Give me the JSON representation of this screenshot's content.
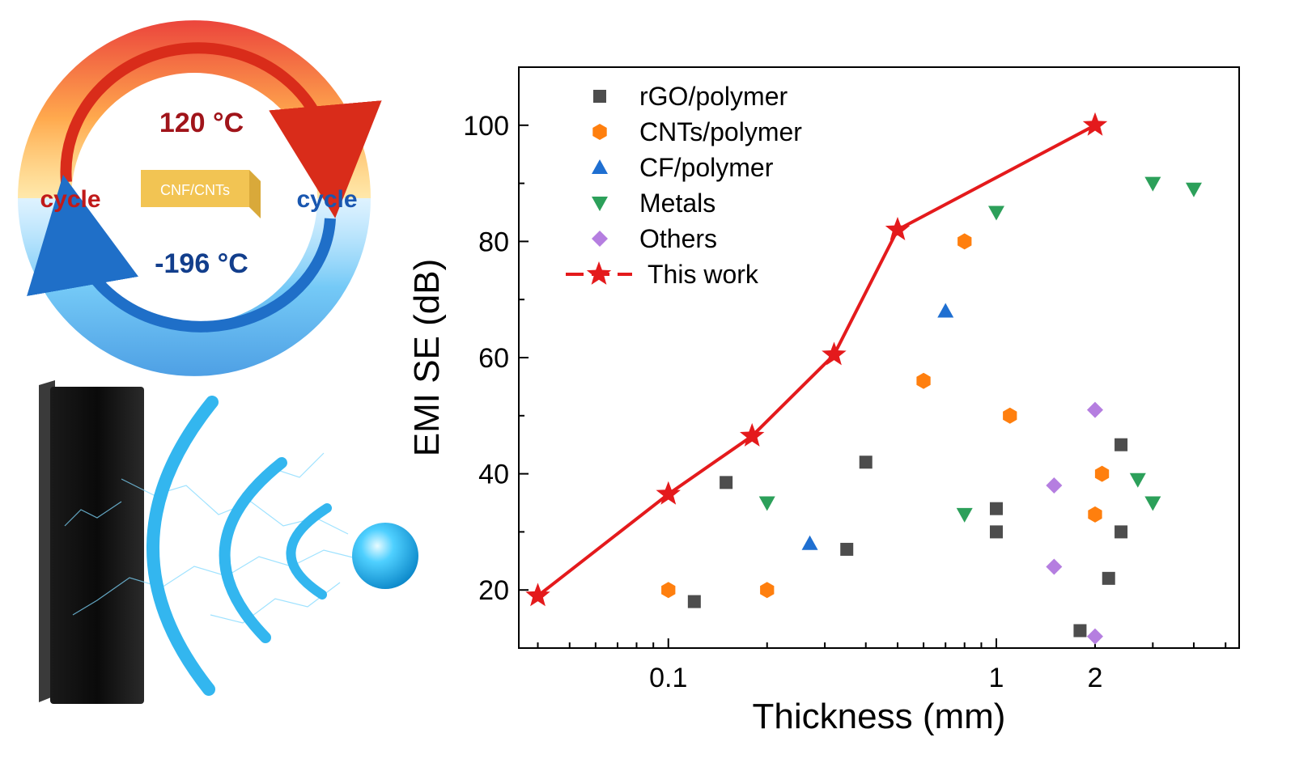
{
  "illustration": {
    "hot_temperature": "120 °C",
    "cold_temperature": "-196 °C",
    "cycle_label_left": "cycle",
    "cycle_label_right": "cycle",
    "sample_label": "CNF/CNTs",
    "colors": {
      "hot": "#e8401c",
      "cold": "#2a8fd8",
      "hot_text": "#a0141a",
      "cold_text": "#123e8c",
      "sample": "#f2c453",
      "wave": "#33b6ef"
    },
    "icons": [
      "shield-panel-icon",
      "signal-wave-icon",
      "emitter-sphere-icon",
      "lightning-icon"
    ]
  },
  "chart_data": {
    "type": "scatter",
    "xlabel": "Thickness (mm)",
    "ylabel": "EMI SE (dB)",
    "x_scale": "log",
    "xlim": [
      0.035,
      5.5
    ],
    "ylim": [
      10,
      110
    ],
    "x_ticks": [
      0.1,
      1,
      2
    ],
    "x_tick_labels": [
      "0.1",
      "1",
      "2"
    ],
    "y_ticks": [
      20,
      40,
      60,
      80,
      100
    ],
    "y_tick_labels": [
      "20",
      "40",
      "60",
      "80",
      "100"
    ],
    "legend_position": "top-left",
    "grid": false,
    "series": [
      {
        "name": "rGO/polymer",
        "marker": "square",
        "color": "#4d4d4d",
        "points": [
          [
            0.12,
            18
          ],
          [
            0.15,
            38.5
          ],
          [
            0.35,
            27
          ],
          [
            0.4,
            42
          ],
          [
            1.0,
            34
          ],
          [
            1.0,
            30
          ],
          [
            1.8,
            13
          ],
          [
            2.2,
            22
          ],
          [
            2.4,
            45
          ],
          [
            2.4,
            30
          ]
        ]
      },
      {
        "name": "CNTs/polymer",
        "marker": "hexagon",
        "color": "#ff7f0e",
        "points": [
          [
            0.1,
            20
          ],
          [
            0.2,
            20
          ],
          [
            0.6,
            56
          ],
          [
            0.8,
            80
          ],
          [
            1.1,
            50
          ],
          [
            2.0,
            33
          ],
          [
            2.1,
            40
          ]
        ]
      },
      {
        "name": "CF/polymer",
        "marker": "triangle-up",
        "color": "#1f6fd1",
        "points": [
          [
            0.27,
            28
          ],
          [
            0.7,
            68
          ]
        ]
      },
      {
        "name": "Metals",
        "marker": "triangle-down",
        "color": "#2ca05a",
        "points": [
          [
            0.2,
            35
          ],
          [
            0.8,
            33
          ],
          [
            1.0,
            85
          ],
          [
            2.7,
            39
          ],
          [
            3.0,
            35
          ],
          [
            3.0,
            90
          ],
          [
            4.0,
            89
          ]
        ]
      },
      {
        "name": "Others",
        "marker": "diamond",
        "color": "#b57ee0",
        "points": [
          [
            1.5,
            38
          ],
          [
            1.5,
            24
          ],
          [
            2.0,
            51
          ],
          [
            2.0,
            12
          ]
        ]
      },
      {
        "name": "This work",
        "marker": "star",
        "color": "#e41a1c",
        "line": true,
        "points": [
          [
            0.04,
            19
          ],
          [
            0.1,
            36.5
          ],
          [
            0.18,
            46.5
          ],
          [
            0.32,
            60.5
          ],
          [
            0.5,
            82
          ],
          [
            2.0,
            100
          ]
        ]
      }
    ]
  }
}
